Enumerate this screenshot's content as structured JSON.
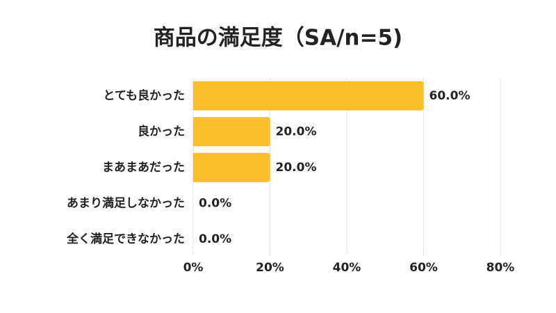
{
  "chart_data": {
    "type": "hbar",
    "title": "商品の満足度（SA/n=5)",
    "categories": [
      "とても良かった",
      "良かった",
      "まあまあだった",
      "あまり満足しなかった",
      "全く満足できなかった"
    ],
    "values": [
      60,
      20,
      20,
      0,
      0
    ],
    "value_labels": [
      "60.0%",
      "20.0%",
      "20.0%",
      "0.0%",
      "0.0%"
    ],
    "color": "#f9bf2a",
    "xlim": [
      0,
      80
    ],
    "xticks": [
      {
        "value": 0,
        "label": "0%"
      },
      {
        "value": 20,
        "label": "20%"
      },
      {
        "value": 40,
        "label": "40%"
      },
      {
        "value": 60,
        "label": "60%"
      },
      {
        "value": 80,
        "label": "80%"
      }
    ],
    "grid": true
  }
}
